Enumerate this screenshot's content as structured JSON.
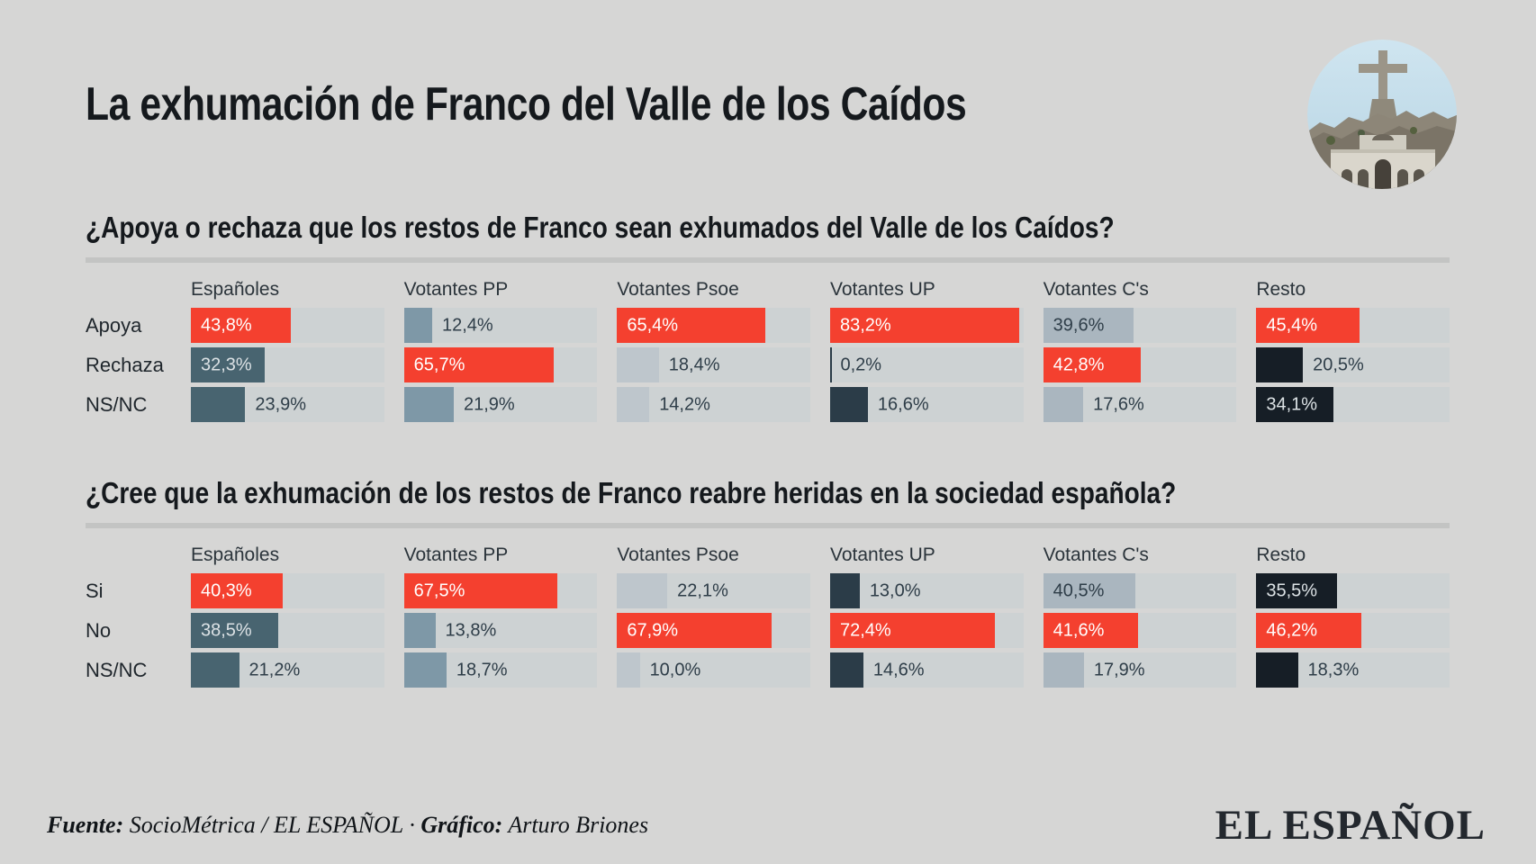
{
  "title": "La exhumación de Franco del Valle de los Caídos",
  "logo_text": "EL ESPAÑOL",
  "footer": {
    "fuente_label": "Fuente:",
    "fuente_value": "SocioMétrica / EL ESPAÑOL",
    "separator": "·",
    "grafico_label": "Gráfico:",
    "grafico_value": "Arturo Briones"
  },
  "style": {
    "background": "#d6d6d5",
    "track": "#cdd2d3",
    "divider": "#c3c4c3",
    "highlight_red": "#f4402f",
    "column_colors": [
      "#486470",
      "#7e98a7",
      "#bec6cc",
      "#2b3c48",
      "#aab6bf",
      "#161e26"
    ],
    "light_columns": [
      2,
      4
    ],
    "text_dark": "#2e3d48",
    "label_on_dark": "#dce2e5",
    "label_on_red": "#ffffff"
  },
  "chart_data": [
    {
      "type": "bar",
      "orientation": "horizontal",
      "title": "¿Apoya o rechaza que los restos de Franco sean exhumados del Valle de los Caídos?",
      "categories": [
        "Españoles",
        "Votantes PP",
        "Votantes Psoe",
        "Votantes UP",
        "Votantes C's",
        "Resto"
      ],
      "series": [
        {
          "name": "Apoya",
          "values": [
            43.8,
            12.4,
            65.4,
            83.2,
            39.6,
            45.4
          ],
          "labels": [
            "43,8%",
            "12,4%",
            "65,4%",
            "83,2%",
            "39,6%",
            "45,4%"
          ]
        },
        {
          "name": "Rechaza",
          "values": [
            32.3,
            65.7,
            18.4,
            0.2,
            42.8,
            20.5
          ],
          "labels": [
            "32,3%",
            "65,7%",
            "18,4%",
            "0,2%",
            "42,8%",
            "20,5%"
          ]
        },
        {
          "name": "NS/NC",
          "values": [
            23.9,
            21.9,
            14.2,
            16.6,
            17.6,
            34.1
          ],
          "labels": [
            "23,9%",
            "21,9%",
            "14,2%",
            "16,6%",
            "17,6%",
            "34,1%"
          ]
        }
      ],
      "unit": "%",
      "xlim": [
        0,
        85
      ],
      "grid": false,
      "legend": "none"
    },
    {
      "type": "bar",
      "orientation": "horizontal",
      "title": "¿Cree que la exhumación de los restos de Franco reabre heridas en la sociedad española?",
      "categories": [
        "Españoles",
        "Votantes PP",
        "Votantes Psoe",
        "Votantes UP",
        "Votantes C's",
        "Resto"
      ],
      "series": [
        {
          "name": "Si",
          "values": [
            40.3,
            67.5,
            22.1,
            13.0,
            40.5,
            35.5
          ],
          "labels": [
            "40,3%",
            "67,5%",
            "22,1%",
            "13,0%",
            "40,5%",
            "35,5%"
          ]
        },
        {
          "name": "No",
          "values": [
            38.5,
            13.8,
            67.9,
            72.4,
            41.6,
            46.2
          ],
          "labels": [
            "38,5%",
            "13,8%",
            "67,9%",
            "72,4%",
            "41,6%",
            "46,2%"
          ]
        },
        {
          "name": "NS/NC",
          "values": [
            21.2,
            18.7,
            10.0,
            14.6,
            17.9,
            18.3
          ],
          "labels": [
            "21,2%",
            "18,7%",
            "10,0%",
            "14,6%",
            "17,9%",
            "18,3%"
          ]
        }
      ],
      "unit": "%",
      "xlim": [
        0,
        85
      ],
      "grid": false,
      "legend": "none"
    }
  ]
}
